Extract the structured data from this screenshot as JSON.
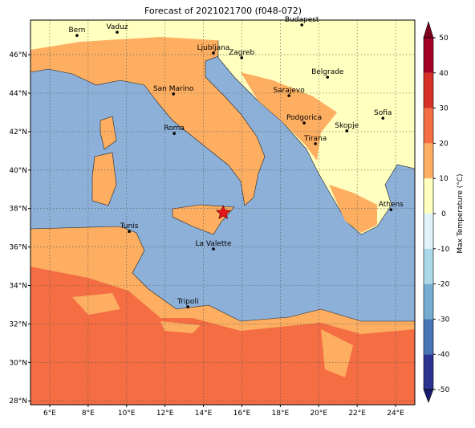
{
  "title": "Forecast of 2021021700 (f048-072)",
  "map": {
    "xlim": [
      5,
      25
    ],
    "ylim": [
      27.8,
      47.8
    ],
    "xticks": [
      {
        "value": 6,
        "label": "6°E"
      },
      {
        "value": 8,
        "label": "8°E"
      },
      {
        "value": 10,
        "label": "10°E"
      },
      {
        "value": 12,
        "label": "12°E"
      },
      {
        "value": 14,
        "label": "14°E"
      },
      {
        "value": 16,
        "label": "16°E"
      },
      {
        "value": 18,
        "label": "18°E"
      },
      {
        "value": 20,
        "label": "20°E"
      },
      {
        "value": 22,
        "label": "22°E"
      },
      {
        "value": 24,
        "label": "24°E"
      }
    ],
    "yticks": [
      {
        "value": 28,
        "label": "28°N"
      },
      {
        "value": 30,
        "label": "30°N"
      },
      {
        "value": 32,
        "label": "32°N"
      },
      {
        "value": 34,
        "label": "34°N"
      },
      {
        "value": 36,
        "label": "36°N"
      },
      {
        "value": 38,
        "label": "38°N"
      },
      {
        "value": 40,
        "label": "40°N"
      },
      {
        "value": 42,
        "label": "42°N"
      },
      {
        "value": 44,
        "label": "44°N"
      },
      {
        "value": 46,
        "label": "46°N"
      }
    ],
    "grid": true,
    "cities": [
      {
        "name": "Bern",
        "lon": 7.42,
        "lat": 47.0
      },
      {
        "name": "Vaduz",
        "lon": 9.51,
        "lat": 47.17
      },
      {
        "name": "Budapest",
        "lon": 19.12,
        "lat": 47.55
      },
      {
        "name": "Ljubljana",
        "lon": 14.52,
        "lat": 46.09
      },
      {
        "name": "Zagreb",
        "lon": 15.99,
        "lat": 45.84
      },
      {
        "name": "San Marino",
        "lon": 12.44,
        "lat": 43.96
      },
      {
        "name": "Belgrade",
        "lon": 20.46,
        "lat": 44.83
      },
      {
        "name": "Sarajevo",
        "lon": 18.45,
        "lat": 43.87
      },
      {
        "name": "Podgorica",
        "lon": 19.24,
        "lat": 42.45
      },
      {
        "name": "Sofia",
        "lon": 23.34,
        "lat": 42.7
      },
      {
        "name": "Skopje",
        "lon": 21.46,
        "lat": 42.04
      },
      {
        "name": "Roma",
        "lon": 12.48,
        "lat": 41.91
      },
      {
        "name": "Tirana",
        "lon": 19.83,
        "lat": 41.37
      },
      {
        "name": "Athens",
        "lon": 23.76,
        "lat": 37.94
      },
      {
        "name": "Tunis",
        "lon": 10.14,
        "lat": 36.81
      },
      {
        "name": "La Valette",
        "lon": 14.52,
        "lat": 35.9
      },
      {
        "name": "Tripoli",
        "lon": 13.19,
        "lat": 32.89
      }
    ],
    "marker": {
      "lon": 15.03,
      "lat": 37.78,
      "color": "#e8141c"
    }
  },
  "colorbar": {
    "label": "Max Temperature (°C)",
    "lim": [
      -50,
      50
    ],
    "ticks": [
      -50,
      -40,
      -30,
      -20,
      -10,
      0,
      10,
      20,
      30,
      40,
      50
    ],
    "bounds": [
      -50,
      -40,
      -30,
      -20,
      -10,
      0,
      10,
      20,
      30,
      40,
      50
    ],
    "colors": [
      "#2b3390",
      "#4575b4",
      "#74add1",
      "#abd9e9",
      "#e0f3f8",
      "#ffffbf",
      "#fdae61",
      "#f46d43",
      "#d73027",
      "#a50026"
    ],
    "under_color": "#1a1a6e",
    "over_color": "#800020"
  }
}
